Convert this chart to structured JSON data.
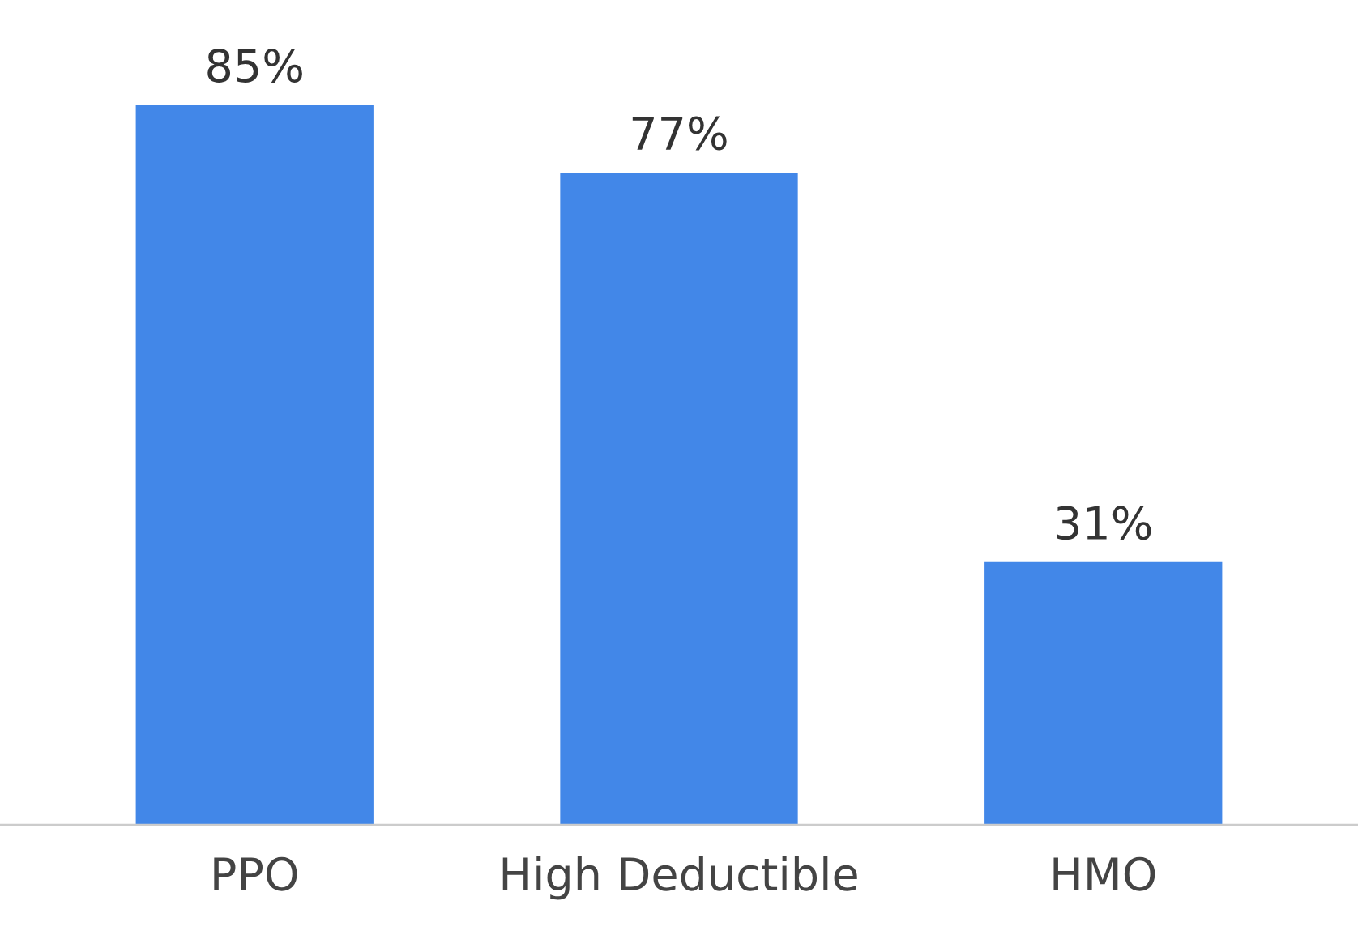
{
  "chart_data": {
    "type": "bar",
    "categories": [
      "PPO",
      "High Deductible",
      "HMO"
    ],
    "values": [
      85,
      77,
      31
    ],
    "value_labels": [
      "85%",
      "77%",
      "31%"
    ],
    "color": "#4287e8",
    "grid": false,
    "legend": false
  }
}
